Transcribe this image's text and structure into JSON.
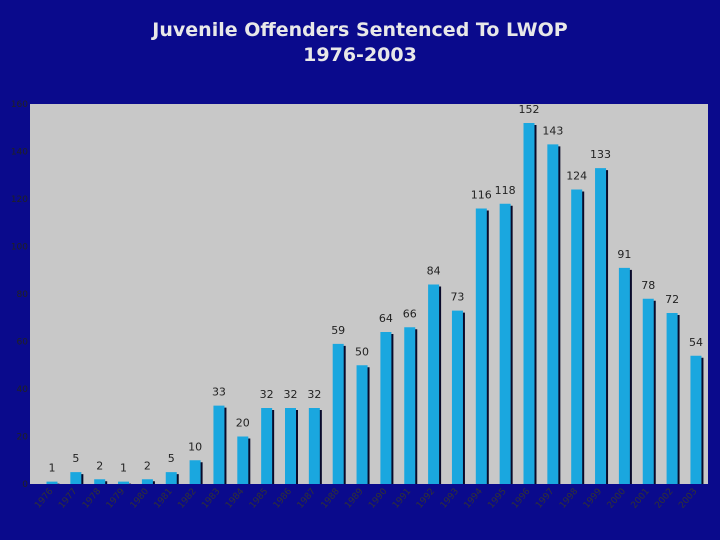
{
  "title": {
    "line1": "Juvenile Offenders Sentenced To LWOP",
    "line2": "1976-2003"
  },
  "colors": {
    "background": "#0a0a8c",
    "plot_area": "#c8c8c8",
    "bar": "#1aa7df",
    "bar_shadow": "#0a0a2a"
  },
  "chart_data": {
    "type": "bar",
    "categories": [
      "1976",
      "1977",
      "1978",
      "1979",
      "1980",
      "1981",
      "1982",
      "1983",
      "1984",
      "1985",
      "1986",
      "1987",
      "1988",
      "1989",
      "1990",
      "1991",
      "1992",
      "1993",
      "1994",
      "1995",
      "1996",
      "1997",
      "1998",
      "1999",
      "2000",
      "2001",
      "2002",
      "2003"
    ],
    "values": [
      1,
      5,
      2,
      1,
      2,
      5,
      10,
      33,
      20,
      32,
      32,
      32,
      59,
      50,
      64,
      66,
      84,
      73,
      116,
      118,
      152,
      143,
      124,
      133,
      91,
      78,
      72,
      54
    ],
    "ylim": [
      0,
      160
    ],
    "yticks": [
      0,
      20,
      40,
      60,
      80,
      100,
      120,
      140,
      160
    ],
    "grid": false,
    "legend": "none",
    "title": "",
    "xlabel": "",
    "ylabel": ""
  }
}
